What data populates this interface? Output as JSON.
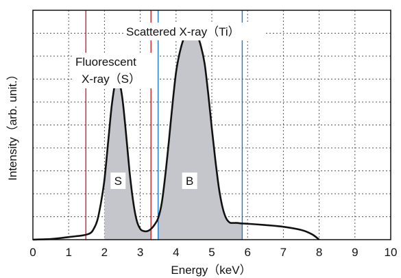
{
  "chart_data": {
    "type": "area",
    "title": "",
    "xlabel": "Energy（keV）",
    "ylabel": "Intensity（arb. unit.）",
    "xlim": [
      0,
      10
    ],
    "ylim": [
      0,
      1
    ],
    "grid": true,
    "x_ticks": [
      0,
      1,
      2,
      3,
      4,
      5,
      6,
      7,
      8,
      9,
      10
    ],
    "x_tick_labels": [
      "0",
      "1",
      "2",
      "3",
      "4",
      "5",
      "6",
      "7",
      "8",
      "9",
      "10"
    ],
    "series": [
      {
        "x": [
          0.0,
          0.5,
          0.8,
          1.0,
          1.2,
          1.4,
          1.6,
          1.7,
          1.8,
          1.9,
          2.0,
          2.1,
          2.2,
          2.3,
          2.4,
          2.5,
          2.6,
          2.7,
          2.8,
          2.9,
          3.0,
          3.1,
          3.2,
          3.3,
          3.4,
          3.5,
          3.6,
          3.7,
          3.8,
          3.9,
          4.0,
          4.1,
          4.2,
          4.3,
          4.4,
          4.5,
          4.6,
          4.7,
          4.8,
          4.9,
          5.0,
          5.1,
          5.2,
          5.3,
          5.4,
          5.5,
          5.6,
          5.7,
          5.8,
          5.9,
          6.0,
          6.2,
          6.5,
          7.0,
          7.5,
          7.8,
          8.0
        ],
        "values": [
          0.0,
          0.003,
          0.008,
          0.012,
          0.016,
          0.02,
          0.03,
          0.05,
          0.09,
          0.17,
          0.28,
          0.45,
          0.62,
          0.73,
          0.74,
          0.66,
          0.5,
          0.32,
          0.18,
          0.09,
          0.05,
          0.04,
          0.04,
          0.05,
          0.07,
          0.1,
          0.17,
          0.3,
          0.46,
          0.63,
          0.78,
          0.87,
          0.93,
          0.96,
          0.97,
          0.97,
          0.95,
          0.9,
          0.82,
          0.68,
          0.52,
          0.37,
          0.24,
          0.15,
          0.1,
          0.08,
          0.078,
          0.078,
          0.076,
          0.075,
          0.074,
          0.072,
          0.068,
          0.06,
          0.045,
          0.025,
          0.0
        ]
      }
    ],
    "shaded_regions": [
      {
        "label": "S",
        "x_range": [
          2.0,
          3.3
        ]
      },
      {
        "label": "B",
        "x_range": [
          3.5,
          5.85
        ]
      }
    ],
    "vertical_lines": [
      {
        "x": 1.48,
        "color": "#d0202a"
      },
      {
        "x": 3.3,
        "color": "#d0202a"
      },
      {
        "x": 3.5,
        "color": "#1a7ac8"
      },
      {
        "x": 5.85,
        "color": "#1a7ac8"
      }
    ],
    "annotations": {
      "fluorescent_line1": "Fluorescent",
      "fluorescent_line2": "X-ray（S）",
      "scattered": "Scattered X-ray（Ti）"
    },
    "colors": {
      "curve": "#111111",
      "fill": "#c4c6cb",
      "grid": "#555555"
    }
  }
}
